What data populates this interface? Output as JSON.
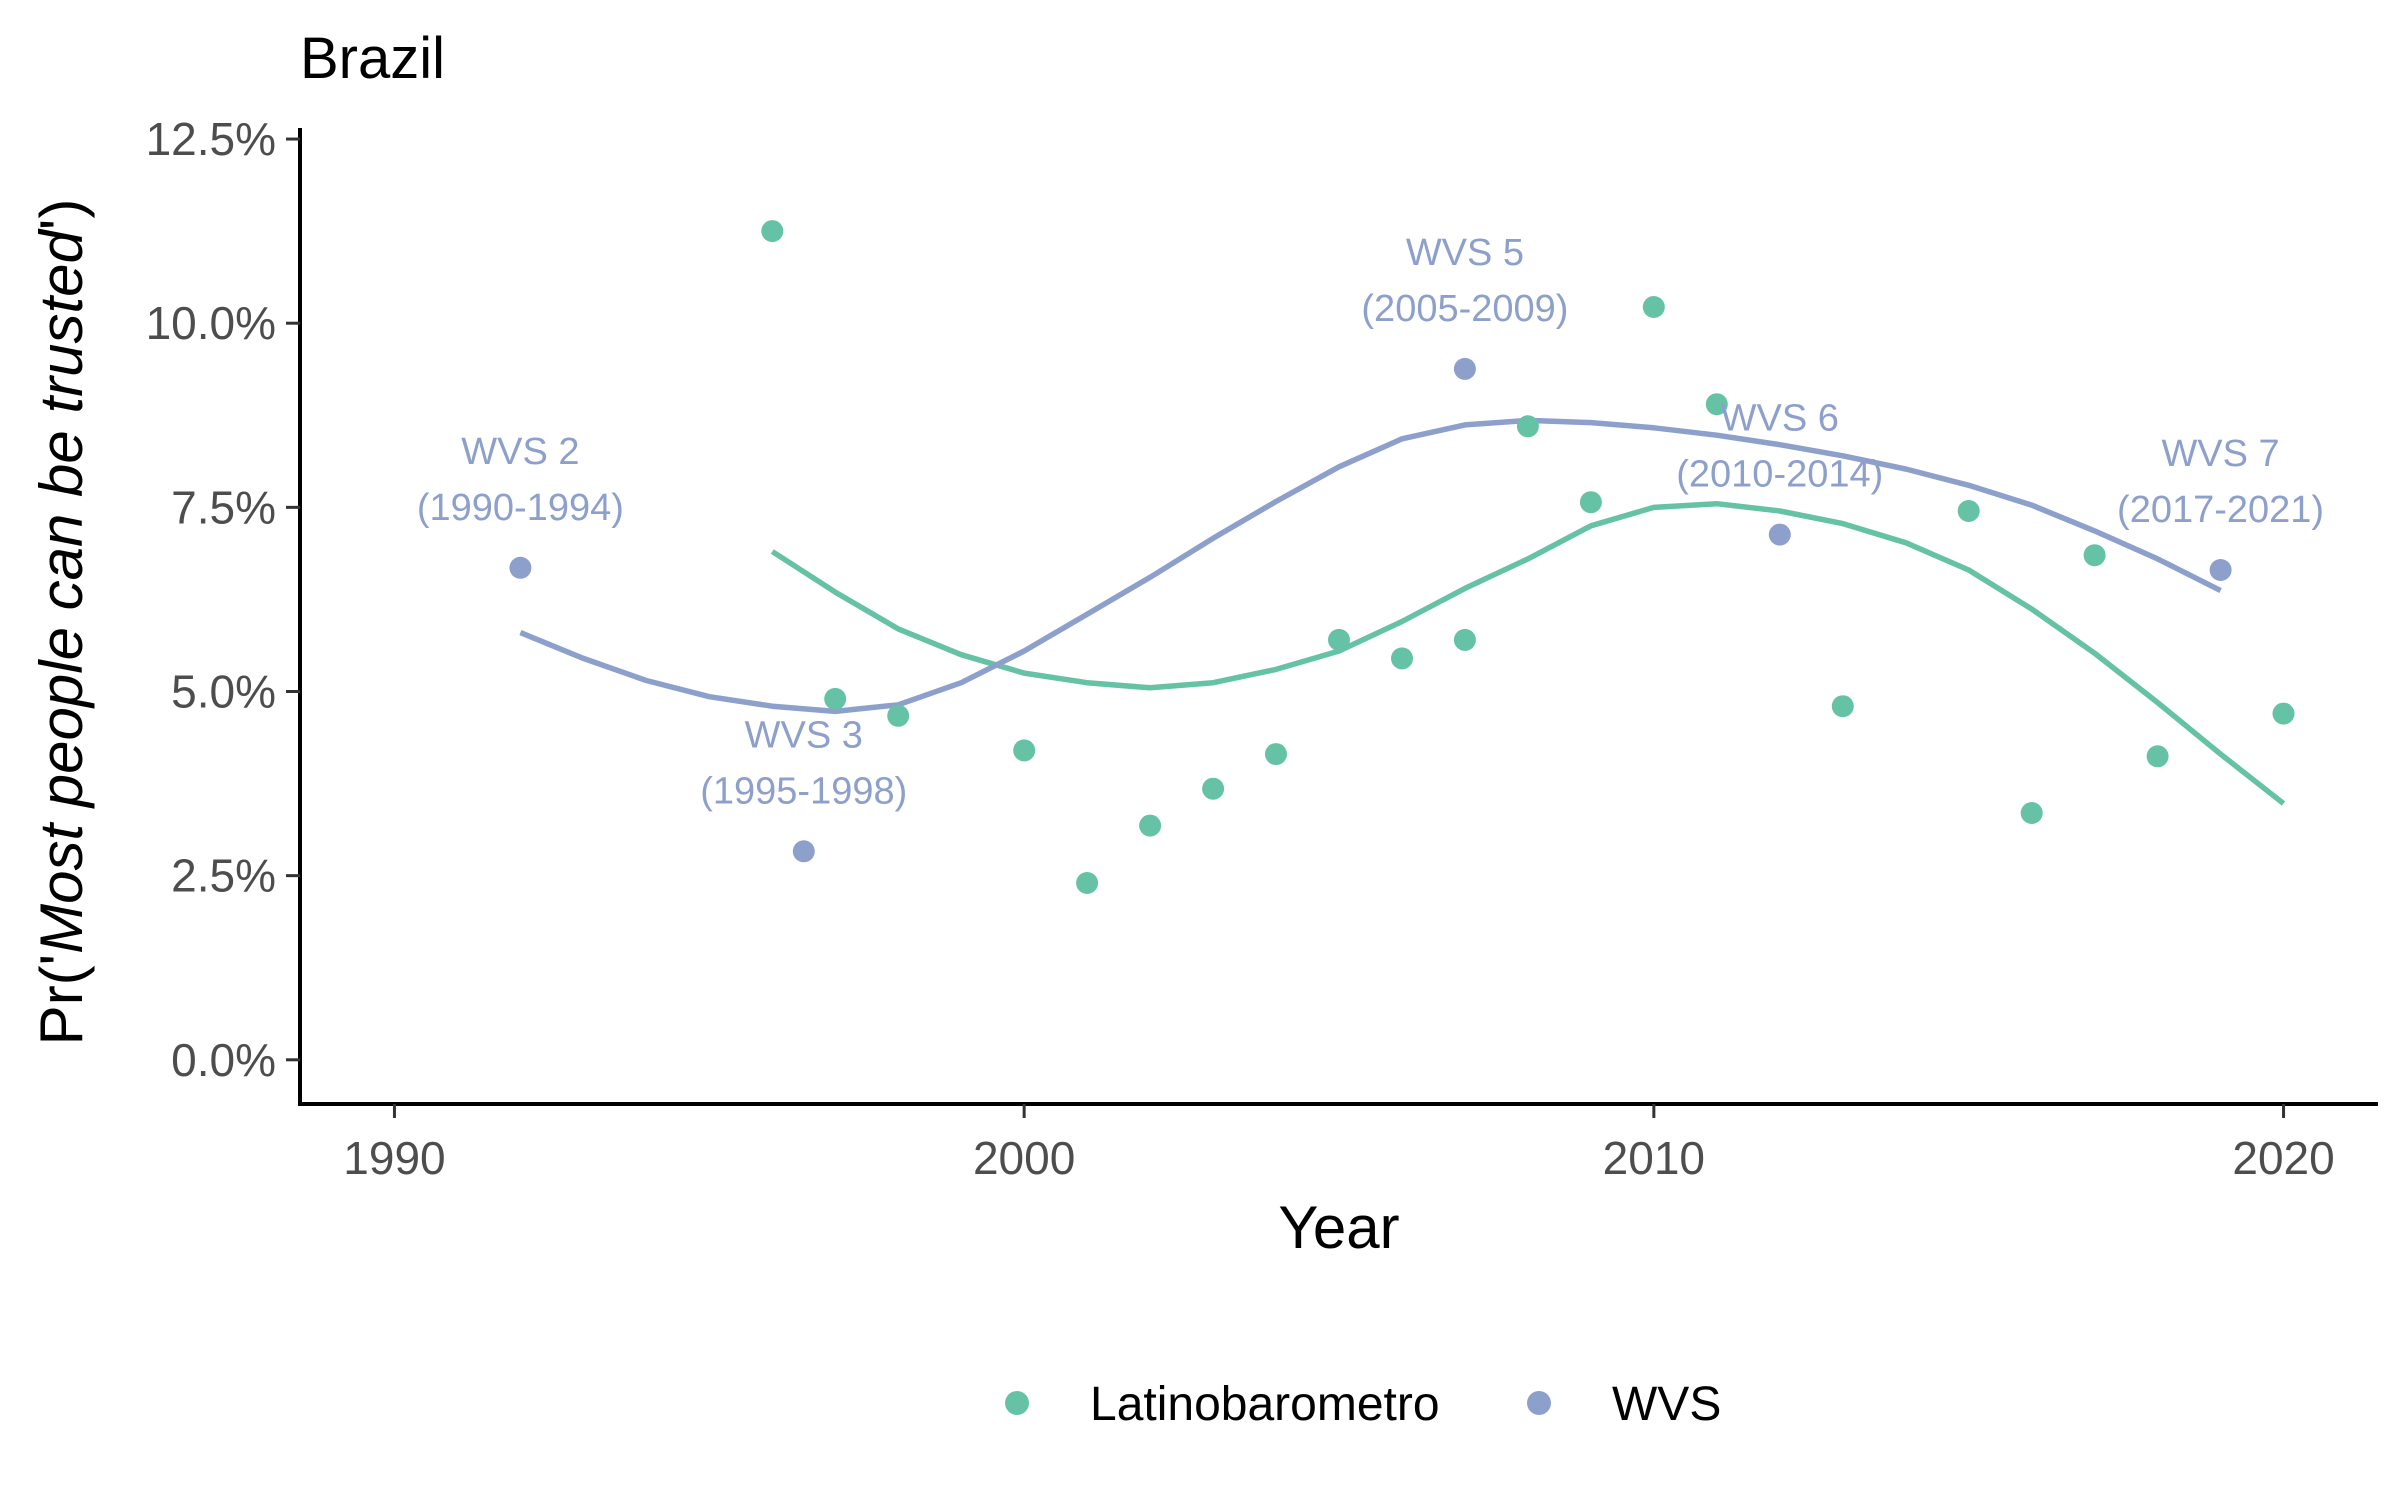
{
  "chart_data": {
    "type": "scatter",
    "title": "Brazil",
    "xlabel": "Year",
    "ylabel_prefix": "Pr('",
    "ylabel_italic": "Most people can be trusted",
    "ylabel_suffix": "')",
    "xlim": [
      1988.5,
      2021.5
    ],
    "ylim": [
      -0.006,
      0.1265
    ],
    "x_ticks": [
      {
        "value": 1990,
        "label": "1990"
      },
      {
        "value": 2000,
        "label": "2000"
      },
      {
        "value": 2010,
        "label": "2010"
      },
      {
        "value": 2020,
        "label": "2020"
      }
    ],
    "y_ticks": [
      {
        "value": 0.0,
        "label": "0.0%"
      },
      {
        "value": 0.025,
        "label": "2.5%"
      },
      {
        "value": 0.05,
        "label": "5.0%"
      },
      {
        "value": 0.075,
        "label": "7.5%"
      },
      {
        "value": 0.1,
        "label": "10.0%"
      },
      {
        "value": 0.125,
        "label": "12.5%"
      }
    ],
    "grid": false,
    "legend_position": "bottom",
    "series": [
      {
        "name": "Latinobarometro",
        "color": "#66c2a5",
        "points": [
          {
            "x": 1996,
            "y": 0.1125
          },
          {
            "x": 1997,
            "y": 0.049
          },
          {
            "x": 1998,
            "y": 0.0467
          },
          {
            "x": 2000,
            "y": 0.042
          },
          {
            "x": 2001,
            "y": 0.024
          },
          {
            "x": 2002,
            "y": 0.0318
          },
          {
            "x": 2003,
            "y": 0.0368
          },
          {
            "x": 2004,
            "y": 0.0415
          },
          {
            "x": 2005,
            "y": 0.057
          },
          {
            "x": 2006,
            "y": 0.0545
          },
          {
            "x": 2007,
            "y": 0.057
          },
          {
            "x": 2008,
            "y": 0.086
          },
          {
            "x": 2009,
            "y": 0.0757
          },
          {
            "x": 2010,
            "y": 0.1022
          },
          {
            "x": 2011,
            "y": 0.089
          },
          {
            "x": 2013,
            "y": 0.048
          },
          {
            "x": 2015,
            "y": 0.0745
          },
          {
            "x": 2016,
            "y": 0.0335
          },
          {
            "x": 2017,
            "y": 0.0685
          },
          {
            "x": 2018,
            "y": 0.0412
          },
          {
            "x": 2020,
            "y": 0.047
          }
        ],
        "smooth": [
          {
            "x": 1996,
            "y": 0.069
          },
          {
            "x": 1997,
            "y": 0.0635
          },
          {
            "x": 1998,
            "y": 0.0585
          },
          {
            "x": 1999,
            "y": 0.055
          },
          {
            "x": 2000,
            "y": 0.0525
          },
          {
            "x": 2001,
            "y": 0.0512
          },
          {
            "x": 2002,
            "y": 0.0505
          },
          {
            "x": 2003,
            "y": 0.0512
          },
          {
            "x": 2004,
            "y": 0.053
          },
          {
            "x": 2005,
            "y": 0.0555
          },
          {
            "x": 2006,
            "y": 0.0595
          },
          {
            "x": 2007,
            "y": 0.064
          },
          {
            "x": 2008,
            "y": 0.068
          },
          {
            "x": 2009,
            "y": 0.0725
          },
          {
            "x": 2010,
            "y": 0.075
          },
          {
            "x": 2011,
            "y": 0.0755
          },
          {
            "x": 2012,
            "y": 0.0745
          },
          {
            "x": 2013,
            "y": 0.0728
          },
          {
            "x": 2014,
            "y": 0.0702
          },
          {
            "x": 2015,
            "y": 0.0665
          },
          {
            "x": 2016,
            "y": 0.0612
          },
          {
            "x": 2017,
            "y": 0.0552
          },
          {
            "x": 2018,
            "y": 0.0485
          },
          {
            "x": 2019,
            "y": 0.0415
          },
          {
            "x": 2020,
            "y": 0.0348
          }
        ]
      },
      {
        "name": "WVS",
        "color": "#8da0cb",
        "points": [
          {
            "x": 1992,
            "y": 0.0668
          },
          {
            "x": 1996.5,
            "y": 0.0283
          },
          {
            "x": 2007,
            "y": 0.0938
          },
          {
            "x": 2012,
            "y": 0.0713
          },
          {
            "x": 2019,
            "y": 0.0665
          }
        ],
        "smooth": [
          {
            "x": 1992,
            "y": 0.058
          },
          {
            "x": 1993,
            "y": 0.0545
          },
          {
            "x": 1994,
            "y": 0.0515
          },
          {
            "x": 1995,
            "y": 0.0493
          },
          {
            "x": 1996,
            "y": 0.048
          },
          {
            "x": 1997,
            "y": 0.0473
          },
          {
            "x": 1998,
            "y": 0.0482
          },
          {
            "x": 1999,
            "y": 0.0512
          },
          {
            "x": 2000,
            "y": 0.0555
          },
          {
            "x": 2001,
            "y": 0.0605
          },
          {
            "x": 2002,
            "y": 0.0655
          },
          {
            "x": 2003,
            "y": 0.0708
          },
          {
            "x": 2004,
            "y": 0.0758
          },
          {
            "x": 2005,
            "y": 0.0805
          },
          {
            "x": 2006,
            "y": 0.0843
          },
          {
            "x": 2007,
            "y": 0.0862
          },
          {
            "x": 2008,
            "y": 0.0868
          },
          {
            "x": 2009,
            "y": 0.0865
          },
          {
            "x": 2010,
            "y": 0.0858
          },
          {
            "x": 2011,
            "y": 0.0848
          },
          {
            "x": 2012,
            "y": 0.0835
          },
          {
            "x": 2013,
            "y": 0.082
          },
          {
            "x": 2014,
            "y": 0.0802
          },
          {
            "x": 2015,
            "y": 0.078
          },
          {
            "x": 2016,
            "y": 0.0753
          },
          {
            "x": 2017,
            "y": 0.0718
          },
          {
            "x": 2018,
            "y": 0.068
          },
          {
            "x": 2019,
            "y": 0.0637
          }
        ]
      }
    ],
    "annotations": [
      {
        "line1": "WVS 2",
        "line2": "(1990-1994)",
        "x": 1992,
        "y": 0.0668
      },
      {
        "line1": "WVS 3",
        "line2": "(1995-1998)",
        "x": 1996.5,
        "y": 0.0283
      },
      {
        "line1": "WVS 5",
        "line2": "(2005-2009)",
        "x": 2007,
        "y": 0.0938
      },
      {
        "line1": "WVS 6",
        "line2": "(2010-2014)",
        "x": 2012,
        "y": 0.0713
      },
      {
        "line1": "WVS 7",
        "line2": "(2017-2021)",
        "x": 2019,
        "y": 0.0665
      }
    ],
    "legend": [
      {
        "label": "Latinobarometro",
        "color": "#66c2a5"
      },
      {
        "label": "WVS",
        "color": "#8da0cb"
      }
    ]
  }
}
